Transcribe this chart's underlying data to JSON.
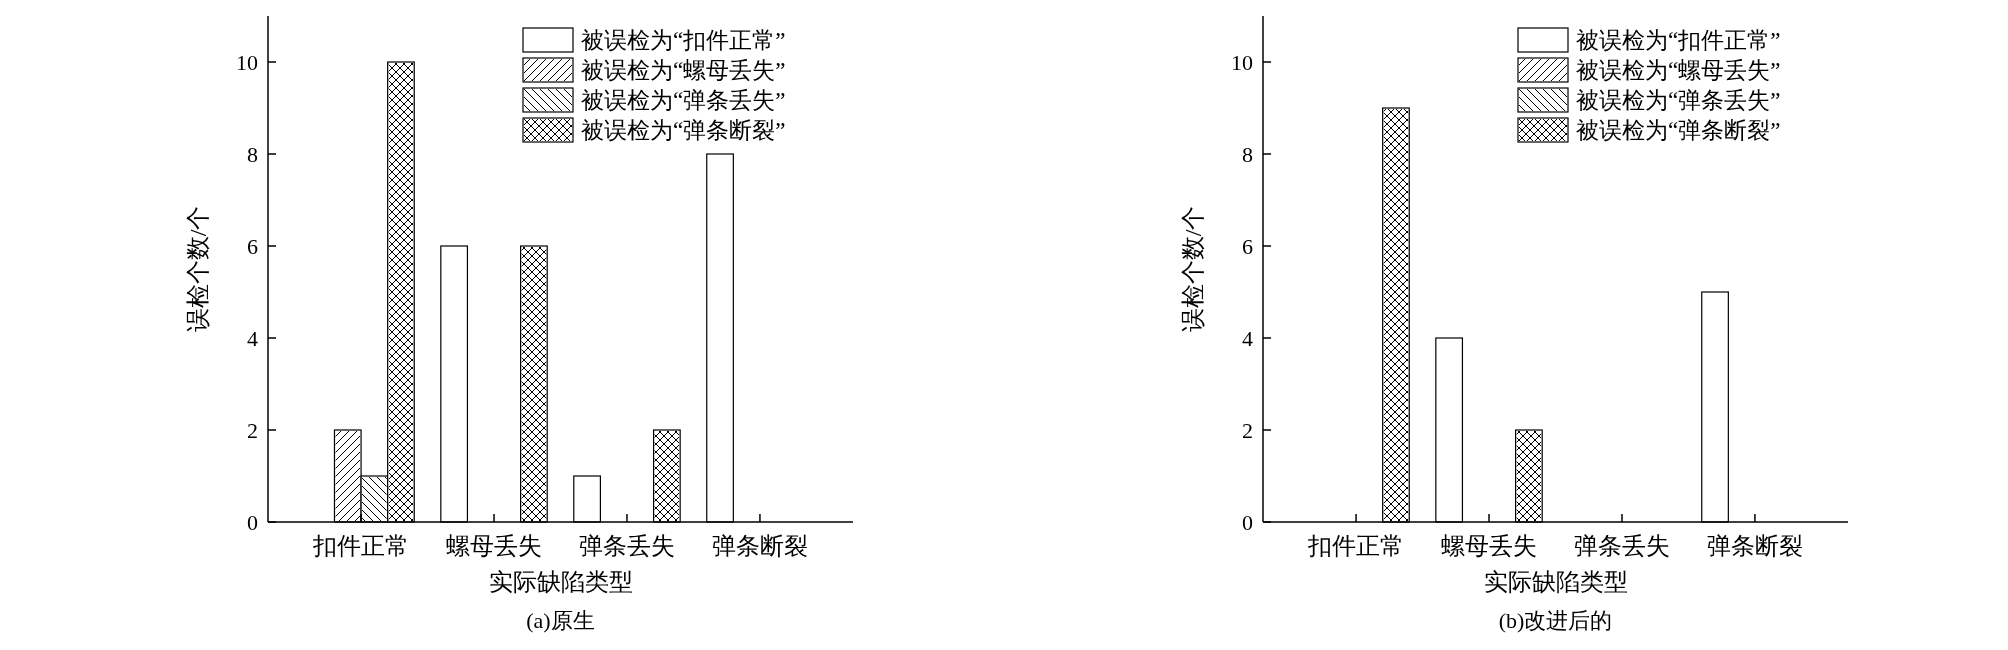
{
  "chart_data": [
    {
      "type": "bar",
      "title": "(a)原生",
      "xlabel": "实际缺陷类型",
      "ylabel": "误检个数/个",
      "categories": [
        "扣件正常",
        "螺母丢失",
        "弹条丢失",
        "弹条断裂"
      ],
      "ylim": [
        0,
        11
      ],
      "yticks": [
        0,
        2,
        4,
        6,
        8,
        10
      ],
      "legend": "top right",
      "grid": false,
      "series": [
        {
          "name": "被误检为“扣件正常”",
          "color": "#ffffff",
          "values": [
            0,
            6,
            1,
            8
          ]
        },
        {
          "name": "被误检为“螺母丢失”",
          "color": "#ffffff",
          "values": [
            2,
            0,
            0,
            0
          ]
        },
        {
          "name": "被误检为“弹条丢失”",
          "color": "#ffffff",
          "values": [
            1,
            0,
            0,
            0
          ]
        },
        {
          "name": "被误检为“弹条断裂”",
          "color": "#ffffff",
          "values": [
            10,
            6,
            2,
            0
          ]
        }
      ]
    },
    {
      "type": "bar",
      "title": "(b)改进后的",
      "xlabel": "实际缺陷类型",
      "ylabel": "误检个数/个",
      "categories": [
        "扣件正常",
        "螺母丢失",
        "弹条丢失",
        "弹条断裂"
      ],
      "ylim": [
        0,
        11
      ],
      "yticks": [
        0,
        2,
        4,
        6,
        8,
        10
      ],
      "legend": "top right",
      "grid": false,
      "series": [
        {
          "name": "被误检为“扣件正常”",
          "color": "#ffffff",
          "values": [
            0,
            4,
            0,
            5
          ]
        },
        {
          "name": "被误检为“螺母丢失”",
          "color": "#ffffff",
          "values": [
            0,
            0,
            0,
            0
          ]
        },
        {
          "name": "被误检为“弹条丢失”",
          "color": "#ffffff",
          "values": [
            0,
            0,
            0,
            0
          ]
        },
        {
          "name": "被误检为“弹条断裂”",
          "color": "#ffffff",
          "values": [
            9,
            2,
            0,
            0
          ]
        }
      ]
    }
  ]
}
